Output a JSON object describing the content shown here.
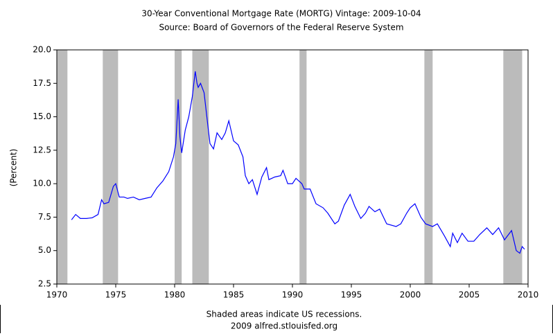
{
  "chart_data": {
    "type": "line",
    "title": "30-Year Conventional Mortgage Rate (MORTG) Vintage: 2009-10-04",
    "subtitle": "Source: Board of Governors of the Federal Reserve System",
    "y_label": "(Percent)",
    "footer": [
      "Shaded areas indicate US recessions.",
      "2009 alfred.stlouisfed.org"
    ],
    "xlim": [
      1970,
      2010
    ],
    "xticks": [
      1970,
      1975,
      1980,
      1985,
      1990,
      1995,
      2000,
      2005,
      2010
    ],
    "ylim": [
      2.5,
      20
    ],
    "yticks": [
      {
        "value": 2.5,
        "label": "2.5"
      },
      {
        "value": 5,
        "label": "5.0"
      },
      7.5,
      {
        "value": 10,
        "label": "10.0"
      },
      12.5,
      {
        "value": 15,
        "label": "15.0"
      },
      17.5,
      {
        "value": 20,
        "label": "20.0"
      }
    ],
    "grid": false,
    "recession_color": "#bbbbbb",
    "recessions": [
      {
        "start": 1970,
        "end": 1970.9
      },
      {
        "start": 1973.9,
        "end": 1975.2
      },
      {
        "start": 1980.0,
        "end": 1980.6
      },
      {
        "start": 1981.5,
        "end": 1982.9
      },
      {
        "start": 1990.6,
        "end": 1991.2
      },
      {
        "start": 2001.2,
        "end": 2001.9
      },
      {
        "start": 2007.9,
        "end": 2009.5
      }
    ],
    "x": [
      1971.25,
      1971.6,
      1972.0,
      1972.5,
      1973.0,
      1973.5,
      1973.8,
      1974.0,
      1974.4,
      1974.8,
      1975.0,
      1975.3,
      1975.7,
      1976.0,
      1976.5,
      1977.0,
      1977.5,
      1978.0,
      1978.5,
      1979.0,
      1979.5,
      1979.9,
      1980.1,
      1980.3,
      1980.45,
      1980.6,
      1980.9,
      1981.2,
      1981.5,
      1981.75,
      1981.9,
      1982.0,
      1982.2,
      1982.5,
      1982.8,
      1983.0,
      1983.3,
      1983.6,
      1984.0,
      1984.3,
      1984.6,
      1985.0,
      1985.4,
      1985.8,
      1986.0,
      1986.3,
      1986.6,
      1987.0,
      1987.4,
      1987.8,
      1988.0,
      1988.5,
      1989.0,
      1989.2,
      1989.6,
      1990.0,
      1990.3,
      1990.8,
      1991.0,
      1991.5,
      1992.0,
      1992.6,
      1993.0,
      1993.6,
      1993.9,
      1994.4,
      1994.9,
      1995.3,
      1995.8,
      1996.2,
      1996.5,
      1997.0,
      1997.4,
      1998.0,
      1998.8,
      1999.2,
      1999.7,
      2000.0,
      2000.4,
      2000.9,
      2001.3,
      2001.9,
      2002.3,
      2002.9,
      2003.4,
      2003.6,
      2004.0,
      2004.4,
      2004.9,
      2005.4,
      2005.9,
      2006.5,
      2007.0,
      2007.5,
      2008.0,
      2008.6,
      2009.0,
      2009.3,
      2009.5,
      2009.7
    ],
    "series": [
      {
        "name": "MORTG",
        "color": "#0000ff",
        "values": [
          7.3,
          7.7,
          7.4,
          7.4,
          7.45,
          7.7,
          8.8,
          8.5,
          8.6,
          9.8,
          10.0,
          9.0,
          9.0,
          8.9,
          9.0,
          8.8,
          8.9,
          9.0,
          9.7,
          10.2,
          10.9,
          12.0,
          13.0,
          16.3,
          13.5,
          12.3,
          14.0,
          15.0,
          16.5,
          18.4,
          17.5,
          17.2,
          17.5,
          16.8,
          14.5,
          13.0,
          12.6,
          13.8,
          13.3,
          13.8,
          14.7,
          13.2,
          12.9,
          12.0,
          10.6,
          10.0,
          10.3,
          9.2,
          10.5,
          11.2,
          10.3,
          10.5,
          10.6,
          11.0,
          10.0,
          10.0,
          10.4,
          10.0,
          9.6,
          9.6,
          8.5,
          8.2,
          7.8,
          7.0,
          7.2,
          8.4,
          9.2,
          8.3,
          7.4,
          7.8,
          8.3,
          7.9,
          8.1,
          7.0,
          6.8,
          7.0,
          7.8,
          8.2,
          8.5,
          7.5,
          7.0,
          6.8,
          7.0,
          6.1,
          5.3,
          6.3,
          5.6,
          6.3,
          5.7,
          5.7,
          6.2,
          6.7,
          6.2,
          6.7,
          5.8,
          6.5,
          5.0,
          4.8,
          5.3,
          5.1
        ]
      }
    ]
  }
}
